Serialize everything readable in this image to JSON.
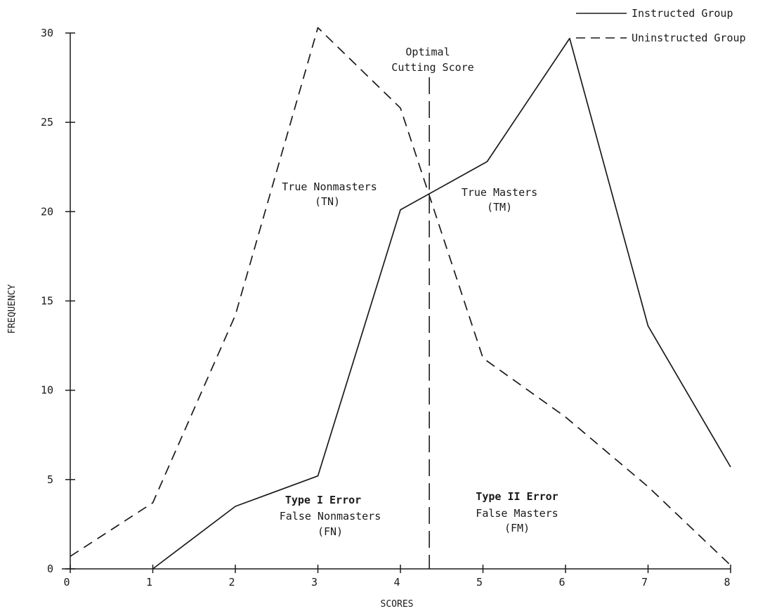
{
  "chart_data": {
    "type": "line",
    "x": [
      0,
      1,
      2,
      3,
      4,
      5,
      6,
      7,
      8
    ],
    "series": [
      {
        "name": "Instructed Group",
        "style": "solid",
        "color": "#1a1a1a",
        "points": [
          [
            1,
            0
          ],
          [
            2,
            3.5
          ],
          [
            3,
            5.2
          ],
          [
            4,
            20.1
          ],
          [
            5.05,
            22.8
          ],
          [
            6.05,
            29.7
          ],
          [
            7,
            13.6
          ],
          [
            8,
            5.7
          ]
        ]
      },
      {
        "name": "Uninstructed Group",
        "style": "dashed",
        "color": "#1a1a1a",
        "points": [
          [
            0,
            0.7
          ],
          [
            1,
            3.7
          ],
          [
            2,
            14.2
          ],
          [
            3,
            30.3
          ],
          [
            4,
            25.8
          ],
          [
            5,
            11.8
          ],
          [
            6,
            8.5
          ],
          [
            7,
            4.6
          ],
          [
            8,
            0.2
          ]
        ]
      }
    ],
    "xlabel": "SCORES",
    "ylabel": "FREQUENCY",
    "xlim": [
      0,
      8
    ],
    "ylim": [
      0,
      30
    ],
    "xticks": [
      "0",
      "1",
      "2",
      "3",
      "4",
      "5",
      "6",
      "7",
      "8"
    ],
    "yticks": [
      "0",
      "5",
      "10",
      "15",
      "20",
      "25",
      "30"
    ],
    "grid": false,
    "legend_position": "top-right",
    "cutting_score": 4.35,
    "annotations": {
      "cutting_score_line1": "Optimal",
      "cutting_score_line2": "Cutting Score",
      "tn_line1": "True Nonmasters",
      "tn_line2": "(TN)",
      "tm_line1": "True Masters",
      "tm_line2": "(TM)",
      "fn_title": "Type I Error",
      "fn_line1": "False Nonmasters",
      "fn_line2": "(FN)",
      "fm_title": "Type II Error",
      "fm_line1": "False Masters",
      "fm_line2": "(FM)"
    }
  }
}
